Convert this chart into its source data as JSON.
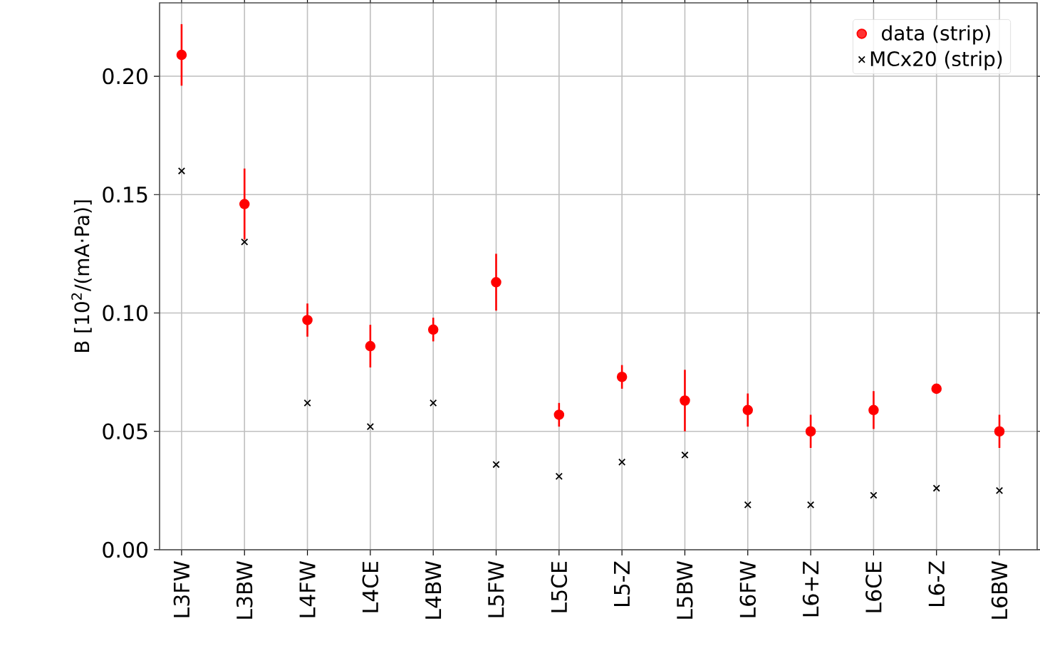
{
  "chart_data": {
    "type": "scatter",
    "ylabel": "B [10$^{2}$/(mA·Pa)]",
    "categories": [
      "L3FW",
      "L3BW",
      "L4FW",
      "L4CE",
      "L4BW",
      "L5FW",
      "L5CE",
      "L5-Z",
      "L5BW",
      "L6FW",
      "L6+Z",
      "L6CE",
      "L6-Z",
      "L6BW"
    ],
    "series": [
      {
        "name": "data (strip)",
        "color": "#ff0000",
        "marker": "circle",
        "values": [
          0.209,
          0.146,
          0.097,
          0.086,
          0.093,
          0.113,
          0.057,
          0.073,
          0.063,
          0.059,
          0.05,
          0.059,
          0.068,
          0.05
        ],
        "errors": [
          0.013,
          0.015,
          0.007,
          0.009,
          0.005,
          0.012,
          0.005,
          0.005,
          0.013,
          0.007,
          0.007,
          0.008,
          0.002,
          0.007
        ]
      },
      {
        "name": "MCx20 (strip)",
        "color": "#000000",
        "marker": "cross",
        "values": [
          0.16,
          0.13,
          0.062,
          0.052,
          0.062,
          0.036,
          0.031,
          0.037,
          0.04,
          0.019,
          0.019,
          0.023,
          0.026,
          0.025
        ]
      }
    ],
    "ylim": [
      0,
      0.231
    ],
    "yticks": [
      {
        "value": 0,
        "label": "0.00"
      },
      {
        "value": 0.05,
        "label": "0.05"
      },
      {
        "value": 0.1,
        "label": "0.10"
      },
      {
        "value": 0.15,
        "label": "0.15"
      },
      {
        "value": 0.2,
        "label": "0.20"
      }
    ],
    "grid": true,
    "legend": "top right"
  }
}
